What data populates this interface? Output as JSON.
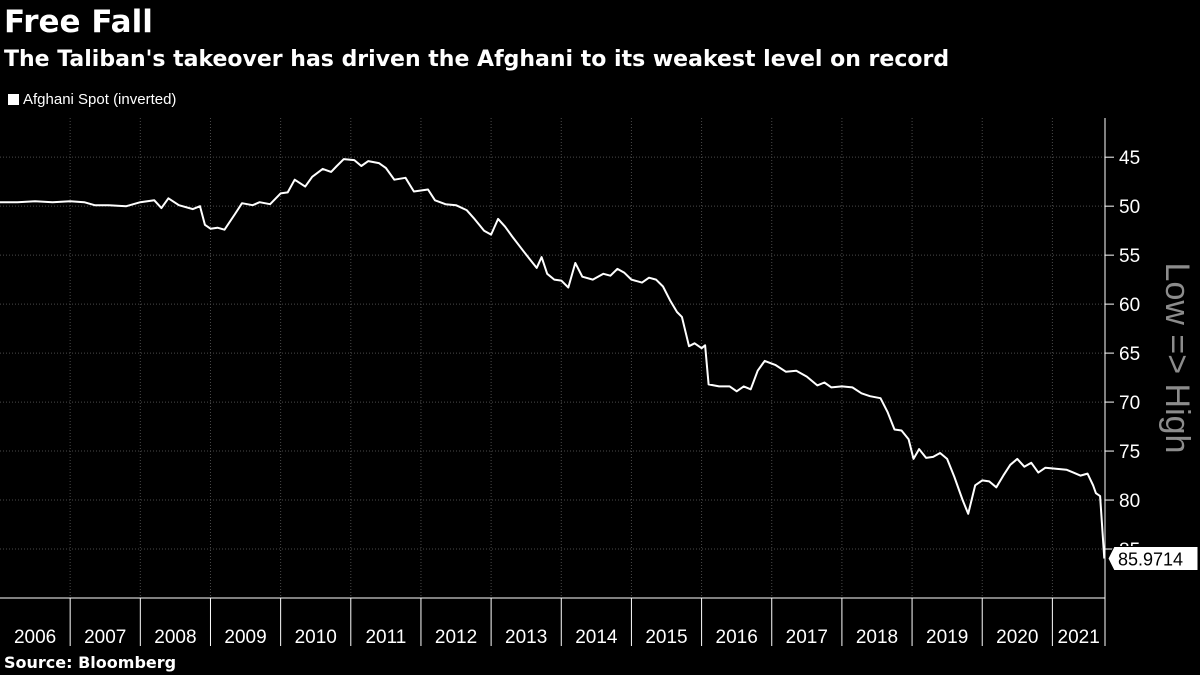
{
  "chart_data": {
    "type": "line",
    "title": "Free Fall",
    "subtitle": "The Taliban's takeover has driven the Afghani to its weakest level on record",
    "source": "Source: Bloomberg",
    "xlabel": "",
    "ylabel": "Low => High",
    "y_inverted": true,
    "ylim": [
      41,
      90
    ],
    "xlim": [
      2006.0,
      2021.75
    ],
    "yticks": [
      45,
      50,
      55,
      60,
      65,
      70,
      75,
      80,
      85
    ],
    "xticks": [
      "2006",
      "2007",
      "2008",
      "2009",
      "2010",
      "2011",
      "2012",
      "2013",
      "2014",
      "2015",
      "2016",
      "2017",
      "2018",
      "2019",
      "2020",
      "2021"
    ],
    "grid": true,
    "last_value_label": "85.9714",
    "series": [
      {
        "name": "Afghani Spot (inverted)",
        "color": "#ffffff",
        "points": [
          [
            2006.0,
            49.6
          ],
          [
            2006.25,
            49.6
          ],
          [
            2006.5,
            49.5
          ],
          [
            2006.75,
            49.6
          ],
          [
            2007.0,
            49.5
          ],
          [
            2007.2,
            49.6
          ],
          [
            2007.35,
            49.9
          ],
          [
            2007.55,
            49.9
          ],
          [
            2007.8,
            50.0
          ],
          [
            2008.0,
            49.6
          ],
          [
            2008.2,
            49.4
          ],
          [
            2008.3,
            50.2
          ],
          [
            2008.4,
            49.2
          ],
          [
            2008.55,
            49.9
          ],
          [
            2008.75,
            50.3
          ],
          [
            2008.85,
            50.0
          ],
          [
            2008.92,
            51.9
          ],
          [
            2009.0,
            52.3
          ],
          [
            2009.1,
            52.2
          ],
          [
            2009.2,
            52.4
          ],
          [
            2009.35,
            50.8
          ],
          [
            2009.45,
            49.7
          ],
          [
            2009.6,
            49.9
          ],
          [
            2009.7,
            49.6
          ],
          [
            2009.85,
            49.8
          ],
          [
            2010.0,
            48.7
          ],
          [
            2010.1,
            48.6
          ],
          [
            2010.2,
            47.3
          ],
          [
            2010.35,
            48.0
          ],
          [
            2010.45,
            47.0
          ],
          [
            2010.6,
            46.2
          ],
          [
            2010.72,
            46.5
          ],
          [
            2010.8,
            45.9
          ],
          [
            2010.9,
            45.2
          ],
          [
            2011.05,
            45.3
          ],
          [
            2011.15,
            45.9
          ],
          [
            2011.25,
            45.4
          ],
          [
            2011.4,
            45.6
          ],
          [
            2011.5,
            46.1
          ],
          [
            2011.62,
            47.3
          ],
          [
            2011.78,
            47.1
          ],
          [
            2011.9,
            48.5
          ],
          [
            2012.1,
            48.3
          ],
          [
            2012.2,
            49.4
          ],
          [
            2012.35,
            49.8
          ],
          [
            2012.5,
            49.9
          ],
          [
            2012.65,
            50.4
          ],
          [
            2012.75,
            51.2
          ],
          [
            2012.9,
            52.5
          ],
          [
            2013.0,
            52.9
          ],
          [
            2013.1,
            51.3
          ],
          [
            2013.2,
            52.1
          ],
          [
            2013.3,
            53.1
          ],
          [
            2013.45,
            54.5
          ],
          [
            2013.55,
            55.4
          ],
          [
            2013.65,
            56.3
          ],
          [
            2013.72,
            55.2
          ],
          [
            2013.8,
            56.9
          ],
          [
            2013.9,
            57.5
          ],
          [
            2014.0,
            57.6
          ],
          [
            2014.1,
            58.3
          ],
          [
            2014.2,
            55.8
          ],
          [
            2014.3,
            57.2
          ],
          [
            2014.45,
            57.5
          ],
          [
            2014.6,
            56.9
          ],
          [
            2014.7,
            57.1
          ],
          [
            2014.8,
            56.4
          ],
          [
            2014.9,
            56.8
          ],
          [
            2015.0,
            57.5
          ],
          [
            2015.15,
            57.8
          ],
          [
            2015.25,
            57.3
          ],
          [
            2015.35,
            57.5
          ],
          [
            2015.45,
            58.2
          ],
          [
            2015.55,
            59.6
          ],
          [
            2015.65,
            60.8
          ],
          [
            2015.72,
            61.3
          ],
          [
            2015.82,
            64.3
          ],
          [
            2015.9,
            64.0
          ],
          [
            2016.0,
            64.5
          ],
          [
            2016.05,
            64.2
          ],
          [
            2016.1,
            68.2
          ],
          [
            2016.25,
            68.4
          ],
          [
            2016.4,
            68.4
          ],
          [
            2016.5,
            68.9
          ],
          [
            2016.6,
            68.4
          ],
          [
            2016.7,
            68.7
          ],
          [
            2016.8,
            66.8
          ],
          [
            2016.9,
            65.8
          ],
          [
            2017.05,
            66.2
          ],
          [
            2017.2,
            66.9
          ],
          [
            2017.35,
            66.8
          ],
          [
            2017.5,
            67.4
          ],
          [
            2017.65,
            68.3
          ],
          [
            2017.75,
            68.0
          ],
          [
            2017.85,
            68.5
          ],
          [
            2018.0,
            68.4
          ],
          [
            2018.15,
            68.5
          ],
          [
            2018.28,
            69.1
          ],
          [
            2018.4,
            69.4
          ],
          [
            2018.55,
            69.6
          ],
          [
            2018.65,
            71.0
          ],
          [
            2018.75,
            72.8
          ],
          [
            2018.85,
            72.9
          ],
          [
            2018.95,
            73.8
          ],
          [
            2019.02,
            75.8
          ],
          [
            2019.1,
            74.8
          ],
          [
            2019.2,
            75.7
          ],
          [
            2019.3,
            75.6
          ],
          [
            2019.4,
            75.2
          ],
          [
            2019.5,
            75.8
          ],
          [
            2019.6,
            77.6
          ],
          [
            2019.72,
            80.0
          ],
          [
            2019.8,
            81.4
          ],
          [
            2019.9,
            78.5
          ],
          [
            2020.0,
            78.0
          ],
          [
            2020.1,
            78.1
          ],
          [
            2020.2,
            78.7
          ],
          [
            2020.3,
            77.5
          ],
          [
            2020.4,
            76.4
          ],
          [
            2020.5,
            75.8
          ],
          [
            2020.6,
            76.6
          ],
          [
            2020.7,
            76.2
          ],
          [
            2020.8,
            77.2
          ],
          [
            2020.9,
            76.7
          ],
          [
            2021.05,
            76.8
          ],
          [
            2021.2,
            76.9
          ],
          [
            2021.3,
            77.2
          ],
          [
            2021.4,
            77.5
          ],
          [
            2021.5,
            77.3
          ],
          [
            2021.58,
            78.5
          ],
          [
            2021.62,
            79.3
          ],
          [
            2021.68,
            79.6
          ],
          [
            2021.74,
            85.9714
          ]
        ]
      }
    ]
  },
  "colors": {
    "background": "#000000",
    "text": "#ffffff",
    "grid": "#4a4a4a",
    "axis": "#ffffff",
    "ylabel": "#8c8c8c"
  }
}
